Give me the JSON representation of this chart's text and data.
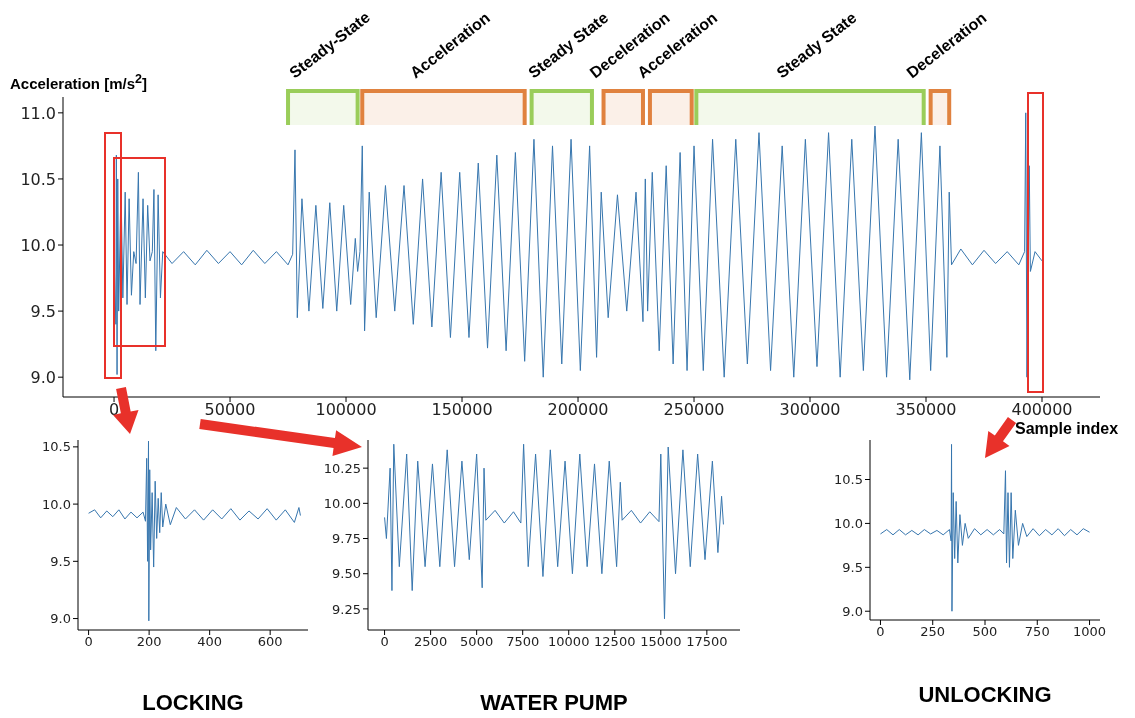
{
  "chart_data": [
    {
      "type": "line",
      "ylabel": "Acceleration [m/s$^{2}$]",
      "xlabel": "Sample index",
      "color": "#3776ae",
      "marker": "none",
      "line_style": "solid",
      "xlim": [
        -22000,
        425000
      ],
      "xticks": [
        0,
        50000,
        100000,
        150000,
        200000,
        250000,
        300000,
        350000,
        400000
      ],
      "ylim": [
        8.85,
        11.12
      ],
      "yticks": [
        {
          "value": 9.0,
          "label": "9.0"
        },
        9.5,
        {
          "value": 10.0,
          "label": "10.0"
        },
        10.5,
        {
          "value": 11.0,
          "label": "11.0"
        }
      ],
      "x": [
        0,
        800,
        1000,
        1300,
        1600,
        2000,
        3000,
        3800,
        4800,
        5600,
        6500,
        7500,
        8500,
        9500,
        10500,
        11200,
        12500,
        13500,
        14500,
        15500,
        16500,
        17200,
        18000,
        19000,
        20000,
        21000,
        25000,
        30000,
        35000,
        40000,
        45000,
        50000,
        55000,
        60000,
        65000,
        70000,
        75000,
        77000,
        78000,
        79000,
        81000,
        84000,
        87000,
        90000,
        93000,
        96000,
        99000,
        102000,
        104000,
        105000,
        106000,
        107000,
        108000,
        110000,
        113000,
        117000,
        121000,
        125000,
        129000,
        133000,
        137000,
        141000,
        145000,
        149000,
        153000,
        157000,
        161000,
        165000,
        169000,
        173000,
        177000,
        181000,
        185000,
        189000,
        193000,
        197000,
        201000,
        205000,
        208000,
        210000,
        213000,
        217000,
        221000,
        225000,
        228000,
        229000,
        230000,
        232000,
        235000,
        238000,
        241000,
        244000,
        247000,
        250000,
        254000,
        258000,
        263000,
        268000,
        273000,
        278000,
        283000,
        288000,
        293000,
        298000,
        303000,
        308000,
        313000,
        318000,
        323000,
        328000,
        333000,
        338000,
        343000,
        348000,
        352000,
        356000,
        359000,
        360000,
        361000,
        365000,
        370000,
        375000,
        380000,
        385000,
        390000,
        392500,
        393000,
        393500,
        394500,
        395000,
        397000,
        400000
      ],
      "values": [
        9.92,
        9.4,
        10.68,
        9.02,
        10.5,
        9.5,
        10.45,
        9.6,
        10.4,
        9.55,
        10.35,
        9.62,
        9.95,
        9.86,
        10.55,
        9.55,
        10.35,
        9.6,
        10.3,
        9.88,
        9.95,
        10.42,
        9.2,
        10.38,
        9.6,
        9.95,
        9.86,
        9.95,
        9.85,
        9.96,
        9.86,
        9.95,
        9.85,
        9.96,
        9.86,
        9.95,
        9.85,
        9.93,
        10.72,
        9.45,
        10.35,
        9.5,
        10.3,
        9.52,
        10.32,
        9.5,
        10.3,
        9.55,
        10.05,
        9.8,
        9.95,
        10.75,
        9.35,
        10.4,
        9.45,
        10.45,
        9.5,
        10.45,
        9.4,
        10.5,
        9.38,
        10.55,
        9.3,
        10.55,
        9.3,
        10.62,
        9.22,
        10.68,
        9.2,
        10.7,
        9.12,
        10.8,
        9.0,
        10.75,
        9.1,
        10.8,
        9.05,
        10.75,
        9.15,
        10.4,
        9.45,
        10.38,
        9.5,
        10.4,
        9.42,
        10.5,
        9.5,
        10.55,
        9.2,
        10.6,
        9.1,
        10.7,
        9.05,
        10.75,
        9.05,
        10.8,
        9.0,
        10.8,
        9.1,
        10.85,
        9.05,
        10.75,
        9.0,
        10.8,
        9.08,
        10.85,
        9.0,
        10.8,
        9.05,
        10.9,
        9.0,
        10.8,
        8.98,
        10.85,
        9.05,
        10.75,
        9.15,
        10.4,
        9.85,
        9.97,
        9.85,
        9.96,
        9.86,
        9.95,
        9.85,
        9.95,
        11.0,
        9.0,
        10.6,
        9.8,
        9.95,
        9.88
      ],
      "bands": [
        {
          "axis": "x",
          "from": 75000,
          "to": 105000,
          "label": "Steady-State",
          "color": "#9acd5a"
        },
        {
          "axis": "x",
          "from": 107000,
          "to": 177000,
          "label": "Acceleration",
          "color": "#e0823f"
        },
        {
          "axis": "x",
          "from": 180000,
          "to": 206000,
          "label": "Steady State",
          "color": "#9acd5a"
        },
        {
          "axis": "x",
          "from": 211000,
          "to": 228000,
          "label": "Deceleration",
          "color": "#e0823f"
        },
        {
          "axis": "x",
          "from": 231000,
          "to": 249000,
          "label": "Acceleration",
          "color": "#e0823f"
        },
        {
          "axis": "x",
          "from": 251000,
          "to": 349000,
          "label": "Steady State",
          "color": "#9acd5a"
        },
        {
          "axis": "x",
          "from": 352000,
          "to": 360000,
          "label": "Deceleration",
          "color": "#e0823f"
        }
      ]
    },
    {
      "type": "line",
      "title": "LOCKING",
      "color": "#3776ae",
      "marker": "none",
      "line_style": "solid",
      "xlim": [
        -35,
        725
      ],
      "xticks": [
        0,
        200,
        400,
        600
      ],
      "ylim": [
        8.9,
        10.56
      ],
      "yticks": [
        {
          "value": 9.0,
          "label": "9.0"
        },
        9.5,
        {
          "value": 10.0,
          "label": "10.0"
        },
        10.5
      ],
      "x": [
        0,
        20,
        40,
        60,
        80,
        100,
        120,
        140,
        160,
        180,
        188,
        192,
        195,
        198,
        199,
        202,
        205,
        210,
        215,
        220,
        225,
        230,
        235,
        240,
        245,
        255,
        270,
        290,
        320,
        350,
        380,
        410,
        440,
        470,
        500,
        530,
        560,
        590,
        620,
        650,
        680,
        695,
        700
      ],
      "values": [
        9.92,
        9.95,
        9.88,
        9.94,
        9.89,
        9.95,
        9.87,
        9.93,
        9.88,
        9.93,
        9.85,
        10.4,
        9.5,
        10.55,
        8.98,
        10.3,
        9.6,
        10.1,
        9.45,
        10.2,
        9.7,
        10.05,
        9.75,
        10.1,
        9.8,
        10.0,
        9.82,
        9.97,
        9.87,
        9.95,
        9.86,
        9.95,
        9.87,
        9.96,
        9.86,
        9.94,
        9.87,
        9.96,
        9.86,
        9.95,
        9.84,
        9.97,
        9.9
      ]
    },
    {
      "type": "line",
      "title": "WATER PUMP",
      "color": "#3776ae",
      "marker": "none",
      "line_style": "solid",
      "xlim": [
        -900,
        19300
      ],
      "xticks": [
        0,
        2500,
        5000,
        7500,
        10000,
        12500,
        15000,
        17500
      ],
      "ylim": [
        9.1,
        10.45
      ],
      "yticks": [
        9.25,
        {
          "value": 9.5,
          "label": "9.50"
        },
        9.75,
        {
          "value": 10.0,
          "label": "10.00"
        },
        10.25
      ],
      "x": [
        0,
        100,
        300,
        400,
        500,
        800,
        1200,
        1500,
        1800,
        2200,
        2600,
        3000,
        3400,
        3800,
        4200,
        4600,
        5000,
        5300,
        5400,
        5500,
        6000,
        6500,
        7000,
        7400,
        7550,
        7800,
        8200,
        8600,
        9000,
        9400,
        9800,
        10200,
        10600,
        11000,
        11400,
        11800,
        12200,
        12600,
        12800,
        12900,
        13400,
        13900,
        14400,
        14900,
        15000,
        15200,
        15400,
        15800,
        16200,
        16600,
        17000,
        17400,
        17800,
        18100,
        18300,
        18400
      ],
      "values": [
        9.9,
        9.75,
        10.25,
        9.38,
        10.42,
        9.55,
        10.35,
        9.38,
        10.3,
        9.55,
        10.28,
        9.55,
        10.38,
        9.55,
        10.3,
        9.6,
        10.35,
        9.4,
        10.25,
        9.88,
        9.95,
        9.86,
        9.94,
        9.86,
        10.42,
        9.55,
        10.35,
        9.48,
        10.38,
        9.55,
        10.3,
        9.5,
        10.35,
        9.55,
        10.28,
        9.5,
        10.3,
        9.55,
        10.15,
        9.88,
        9.95,
        9.86,
        9.94,
        9.87,
        10.35,
        9.18,
        10.4,
        9.5,
        10.38,
        9.55,
        10.35,
        9.6,
        10.3,
        9.65,
        10.05,
        9.85
      ]
    },
    {
      "type": "line",
      "title": "UNLOCKING",
      "color": "#3776ae",
      "marker": "none",
      "line_style": "solid",
      "xlim": [
        -50,
        1050
      ],
      "xticks": [
        0,
        250,
        500,
        750,
        1000
      ],
      "ylim": [
        8.9,
        10.95
      ],
      "yticks": [
        {
          "value": 9.0,
          "label": "9.0"
        },
        9.5,
        {
          "value": 10.0,
          "label": "10.0"
        },
        10.5
      ],
      "x": [
        0,
        30,
        60,
        90,
        120,
        150,
        180,
        210,
        240,
        270,
        300,
        330,
        338,
        340,
        342,
        348,
        355,
        362,
        370,
        380,
        392,
        405,
        420,
        450,
        480,
        510,
        540,
        570,
        590,
        598,
        603,
        610,
        617,
        625,
        633,
        645,
        660,
        680,
        700,
        730,
        760,
        790,
        820,
        850,
        880,
        910,
        940,
        970,
        1000
      ],
      "values": [
        9.88,
        9.93,
        9.87,
        9.93,
        9.87,
        9.92,
        9.87,
        9.93,
        9.88,
        9.92,
        9.87,
        9.93,
        9.8,
        10.9,
        9.0,
        10.35,
        9.6,
        10.25,
        9.55,
        10.1,
        9.75,
        10.0,
        9.83,
        9.94,
        9.87,
        9.93,
        9.87,
        9.93,
        9.88,
        10.6,
        9.55,
        10.35,
        9.5,
        10.35,
        9.6,
        10.15,
        9.75,
        10.0,
        9.85,
        9.94,
        9.86,
        9.93,
        9.87,
        9.94,
        9.86,
        9.93,
        9.87,
        9.94,
        9.9
      ]
    }
  ]
}
